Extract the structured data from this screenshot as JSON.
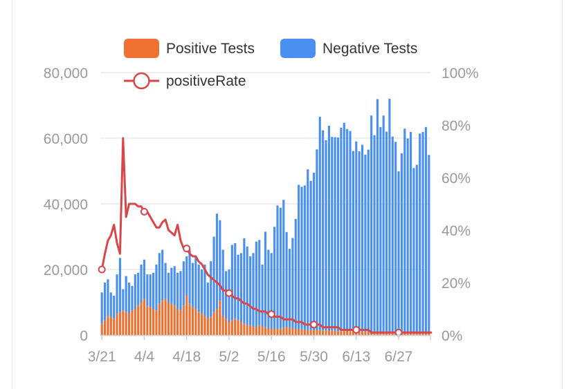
{
  "chart_data": {
    "type": "bar",
    "stacked": true,
    "legend": {
      "position": "top",
      "entries": [
        {
          "name": "Positive Tests",
          "color": "#ef7132"
        },
        {
          "name": "Negative Tests",
          "color": "#4a90f0"
        },
        {
          "name": "positiveRate",
          "color": "#d9464a",
          "kind": "line"
        }
      ]
    },
    "x_tick_labels": [
      "3/21",
      "4/4",
      "4/18",
      "5/2",
      "5/16",
      "5/30",
      "6/13",
      "6/27"
    ],
    "y_left": {
      "ticks": [
        "0",
        "20,000",
        "40,000",
        "60,000",
        "80,000"
      ],
      "ylim": [
        0,
        80000
      ]
    },
    "y_right": {
      "ticks": [
        "0%",
        "20%",
        "40%",
        "60%",
        "80%",
        "100%"
      ],
      "ylim": [
        0,
        100
      ]
    },
    "grid": "horizontal",
    "series": [
      {
        "name": "Positive Tests",
        "axis": "left",
        "values": [
          3500,
          4500,
          6000,
          5500,
          5000,
          6500,
          7000,
          7500,
          7000,
          6500,
          7500,
          8000,
          9000,
          10000,
          11000,
          9000,
          8500,
          8000,
          7500,
          9500,
          10500,
          11000,
          10000,
          9500,
          9000,
          8000,
          7500,
          9000,
          12000,
          9500,
          8500,
          8000,
          7000,
          6500,
          6000,
          5000,
          5500,
          7000,
          8000,
          10500,
          6000,
          5000,
          4000,
          4500,
          5000,
          4500,
          4000,
          3500,
          3000,
          3000,
          2500,
          2500,
          3000,
          2500,
          2500,
          2000,
          2000,
          2000,
          2000,
          1800,
          2200,
          2400,
          2300,
          2100,
          1900,
          1800,
          1700,
          1600,
          1500,
          1500,
          1500,
          1600,
          1500,
          1400,
          1400,
          1300,
          1400,
          1300,
          1200,
          1200,
          1200,
          1300,
          1200,
          1100,
          1000,
          1000,
          1000,
          1000,
          1000,
          900,
          900,
          900,
          900,
          900,
          1000,
          1000,
          1000,
          900,
          900,
          900,
          900,
          900,
          900,
          900,
          900,
          900,
          900,
          900,
          900,
          900
        ]
      },
      {
        "name": "Negative Tests",
        "axis": "left",
        "values": [
          9500,
          11500,
          11000,
          7500,
          7000,
          12000,
          16500,
          6500,
          11000,
          9500,
          7500,
          10500,
          10000,
          11500,
          12000,
          9500,
          10000,
          11000,
          14000,
          15500,
          15500,
          11000,
          9000,
          11000,
          12000,
          11000,
          12000,
          13500,
          12000,
          16500,
          13500,
          16000,
          14500,
          13500,
          15500,
          11000,
          17000,
          23000,
          29000,
          24500,
          20000,
          14500,
          16000,
          23000,
          23000,
          20000,
          21000,
          26000,
          24000,
          21000,
          22500,
          26000,
          26000,
          19000,
          29000,
          24000,
          23000,
          31000,
          37500,
          37000,
          39000,
          29000,
          24000,
          27500,
          33500,
          44000,
          43500,
          44000,
          49000,
          45500,
          48000,
          55000,
          65000,
          61000,
          58000,
          62500,
          59000,
          59000,
          59000,
          62000,
          63500,
          61500,
          61000,
          55000,
          58000,
          55000,
          57000,
          54000,
          55500,
          66000,
          60000,
          71000,
          62500,
          66000,
          61000,
          71000,
          59500,
          58000,
          49000,
          54500,
          62000,
          59000,
          61000,
          50000,
          51000,
          60500,
          61000,
          62500,
          54000
        ]
      },
      {
        "name": "positiveRate",
        "axis": "right",
        "kind": "line",
        "values": [
          25,
          31,
          36,
          38,
          42,
          35,
          31,
          75,
          45,
          50,
          50,
          50,
          49,
          49,
          47,
          47,
          45,
          43,
          41,
          41,
          43,
          44,
          40,
          39,
          38,
          42,
          36,
          33,
          33,
          31,
          30,
          30,
          28,
          27,
          25,
          23,
          22,
          21,
          20,
          19,
          17,
          17,
          16,
          15,
          14,
          14,
          13,
          12,
          12,
          11,
          10,
          10,
          9,
          9,
          9,
          8,
          8,
          7,
          7,
          7,
          6,
          6,
          6,
          6,
          5,
          5,
          5,
          4,
          4,
          4,
          4,
          4,
          4,
          3,
          3,
          3,
          3,
          3,
          3,
          2,
          2,
          2,
          2,
          2,
          2,
          2,
          2,
          2,
          2,
          1,
          1,
          1,
          1,
          1,
          1,
          1,
          1,
          1,
          1,
          1,
          1,
          1,
          1,
          1,
          1,
          1,
          1,
          1,
          1,
          1
        ]
      }
    ]
  }
}
